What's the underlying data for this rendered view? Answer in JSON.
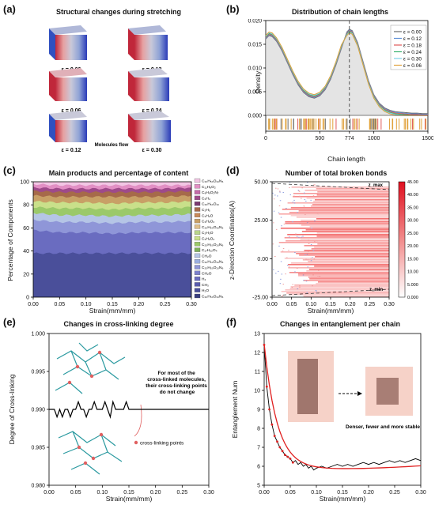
{
  "panels": {
    "a": {
      "label": "(a)",
      "title": "Structural changes during stretching",
      "strains": [
        "ε = 0.00",
        "ε = 0.18",
        "ε = 0.06",
        "ε = 0.24",
        "ε = 0.12",
        "ε = 0.30"
      ],
      "note": "Molecules flow"
    },
    "b": {
      "label": "(b)",
      "title": "Distribution of chain lengths"
    },
    "c": {
      "label": "(c)",
      "title": "Main products and percentage of content"
    },
    "d": {
      "label": "(d)",
      "title": "Number of total broken bonds"
    },
    "e": {
      "label": "(e)",
      "title": "Changes in cross-linking degree",
      "annotation": [
        "For most of the",
        "cross-linked molecules,",
        "their cross-linking points",
        "do not change"
      ],
      "legend_item": "cross-linking points"
    },
    "f": {
      "label": "(f)",
      "title": "Changes in  entanglement per chain",
      "annotation": "Denser, fewer and more stable"
    }
  },
  "chart_data": [
    {
      "id": "b",
      "type": "line",
      "xlabel": "Chain length",
      "ylabel": "Density",
      "xlim": [
        0,
        1500
      ],
      "ylim": [
        0,
        0.02
      ],
      "xticks": [
        0,
        500,
        774,
        1000,
        1500
      ],
      "xtick_labels": [
        "0",
        "500",
        "774",
        "1000",
        "1500"
      ],
      "yticks": [
        0,
        0.005,
        0.01,
        0.015,
        0.02
      ],
      "ytick_labels": [
        "0.000",
        "0.005",
        "0.010",
        "0.015",
        "0.020"
      ],
      "vline": 774,
      "legend_position": "top-right",
      "series": [
        {
          "name": "ε = 0.00",
          "color": "#6b6b6b"
        },
        {
          "name": "ε = 0.12",
          "color": "#5b8ed6"
        },
        {
          "name": "ε = 0.18",
          "color": "#e05a5a"
        },
        {
          "name": "ε = 0.24",
          "color": "#3cb371"
        },
        {
          "name": "ε = 0.30",
          "color": "#7fd0e8"
        },
        {
          "name": "ε = 0.06",
          "color": "#e0a13a"
        }
      ],
      "curve_x": [
        0,
        30,
        60,
        100,
        150,
        200,
        250,
        300,
        350,
        400,
        450,
        500,
        550,
        600,
        650,
        700,
        750,
        774,
        800,
        850,
        900,
        950,
        1000,
        1050,
        1100,
        1150,
        1200,
        1250,
        1300,
        1350,
        1400,
        1450,
        1500
      ],
      "curve_y": [
        0.0165,
        0.0172,
        0.017,
        0.016,
        0.014,
        0.0115,
        0.009,
        0.0068,
        0.0052,
        0.0043,
        0.004,
        0.0045,
        0.0058,
        0.008,
        0.011,
        0.0145,
        0.0172,
        0.0178,
        0.0175,
        0.015,
        0.011,
        0.007,
        0.004,
        0.0022,
        0.0012,
        0.0007,
        0.0004,
        0.0003,
        0.0002,
        0.0001,
        0.0001,
        0.0,
        0.0
      ]
    },
    {
      "id": "c",
      "type": "area",
      "xlabel": "Strain(mm/mm)",
      "ylabel": "Percentage of Components",
      "xlim": [
        0,
        0.3
      ],
      "ylim": [
        0,
        100
      ],
      "xticks": [
        "0.00",
        "0.05",
        "0.10",
        "0.15",
        "0.20",
        "0.25",
        "0.30"
      ],
      "yticks": [
        "0",
        "20",
        "40",
        "60",
        "80",
        "100"
      ],
      "legend_position": "right",
      "legend": [
        "C₂₀H₅₀O₁₀N₆",
        "C₁₁H₈O₂",
        "C₉H₉O₂N₇",
        "C₂H₄",
        "C₂₀H₆₀O₁₀",
        "C₂H₅",
        "C₂H₂O",
        "C₂H₂O₂",
        "C₂₀H₅₀O₁₀N₆",
        "C₂H₃O",
        "C₂H₂O₂",
        "C₂₀H₅₀O₁₀N₆",
        "C₁₇H₂₂O₄",
        "CH₂O",
        "C₂₀H₅₀O₁₀N₆",
        "C₂₀H₅₀O₁₀N₆",
        "CH₂O",
        "H₂",
        "CH₃",
        "H₂O",
        "C₂₀H₅₀O₁₀N₆"
      ],
      "layers": [
        {
          "color": "#4a4f9a",
          "top": [
            38,
            38,
            38,
            38,
            38,
            38,
            38
          ]
        },
        {
          "color": "#6a6cc0",
          "top": [
            58,
            56,
            56,
            55,
            56,
            56,
            56
          ]
        },
        {
          "color": "#8f96d8",
          "top": [
            67,
            65,
            65,
            64,
            65,
            65,
            66
          ]
        },
        {
          "color": "#b5c5e6",
          "top": [
            73,
            71,
            71,
            70,
            71,
            71,
            72
          ]
        },
        {
          "color": "#9bc96a",
          "top": [
            78,
            77,
            77,
            76,
            77,
            77,
            78
          ]
        },
        {
          "color": "#c9e08a",
          "top": [
            83,
            82,
            82,
            81,
            82,
            82,
            83
          ]
        },
        {
          "color": "#c8a066",
          "top": [
            88,
            87,
            87,
            87,
            87,
            87,
            88
          ]
        },
        {
          "color": "#a66a4a",
          "top": [
            92,
            91,
            91,
            91,
            91,
            91,
            92
          ]
        },
        {
          "color": "#9e4a8a",
          "top": [
            95,
            94,
            94,
            94,
            94,
            94,
            95
          ]
        },
        {
          "color": "#e28fc4",
          "top": [
            98,
            97,
            97,
            97,
            97,
            97,
            97
          ]
        }
      ]
    },
    {
      "id": "d",
      "type": "heatmap",
      "xlabel": "Strain(mm/mm)",
      "ylabel": "z-Direction Coordinates(A)",
      "xlim": [
        0,
        0.3
      ],
      "ylim": [
        -25,
        50
      ],
      "xticks": [
        "0.00",
        "0.05",
        "0.10",
        "0.15",
        "0.20",
        "0.25",
        "0.30"
      ],
      "yticks": [
        "-25.00",
        "0.00",
        "25.00",
        "50.00"
      ],
      "colorbar": [
        "0.000",
        "5.000",
        "10.00",
        "15.00",
        "20.00",
        "25.00",
        "30.00",
        "35.00",
        "40.00",
        "45.00"
      ],
      "zmax_label": "z_max",
      "zmin_label": "z_min"
    },
    {
      "id": "e",
      "type": "line",
      "xlabel": "Strain(mm/mm)",
      "ylabel": "Degree of Cross-linking",
      "xlim": [
        0,
        0.3
      ],
      "ylim": [
        0.98,
        1.0
      ],
      "xticks": [
        "0.00",
        "0.05",
        "0.10",
        "0.15",
        "0.20",
        "0.25",
        "0.30"
      ],
      "yticks": [
        "0.980",
        "0.985",
        "0.990",
        "0.995",
        "1.000"
      ],
      "x": [
        0,
        0.005,
        0.01,
        0.015,
        0.02,
        0.025,
        0.03,
        0.035,
        0.04,
        0.045,
        0.05,
        0.055,
        0.06,
        0.065,
        0.07,
        0.075,
        0.08,
        0.085,
        0.09,
        0.095,
        0.1,
        0.105,
        0.11,
        0.115,
        0.12,
        0.125,
        0.13,
        0.135,
        0.14,
        0.145,
        0.15,
        0.155,
        0.16,
        0.165,
        0.17,
        0.175,
        0.18,
        0.185,
        0.19,
        0.195,
        0.2,
        0.205,
        0.21,
        0.215,
        0.22,
        0.225,
        0.23,
        0.235,
        0.24,
        0.245,
        0.25,
        0.255,
        0.26,
        0.265,
        0.27,
        0.275,
        0.28,
        0.285,
        0.29,
        0.295,
        0.3
      ],
      "y": [
        0.99,
        0.99,
        0.99,
        0.989,
        0.99,
        0.989,
        0.99,
        0.99,
        0.989,
        0.99,
        0.99,
        0.991,
        0.99,
        0.99,
        0.989,
        0.99,
        0.99,
        0.991,
        0.99,
        0.99,
        0.99,
        0.991,
        0.99,
        0.989,
        0.991,
        0.99,
        0.99,
        0.99,
        0.99,
        0.991,
        0.99,
        0.99,
        0.99,
        0.99,
        0.99,
        0.99,
        0.99,
        0.99,
        0.99,
        0.99,
        0.99,
        0.99,
        0.99,
        0.99,
        0.99,
        0.99,
        0.99,
        0.99,
        0.99,
        0.99,
        0.99,
        0.99,
        0.99,
        0.99,
        0.99,
        0.99,
        0.99,
        0.99,
        0.99,
        0.99,
        0.99
      ]
    },
    {
      "id": "f",
      "type": "line",
      "xlabel": "Strain(mm/mm)",
      "ylabel": "Entanglement Num",
      "xlim": [
        0,
        0.3
      ],
      "ylim": [
        5,
        13
      ],
      "xticks": [
        "0.00",
        "0.05",
        "0.10",
        "0.15",
        "0.20",
        "0.25",
        "0.30"
      ],
      "yticks": [
        "5",
        "6",
        "7",
        "8",
        "9",
        "10",
        "11",
        "12",
        "13"
      ],
      "x": [
        0,
        0.005,
        0.01,
        0.015,
        0.02,
        0.025,
        0.03,
        0.035,
        0.04,
        0.045,
        0.05,
        0.055,
        0.06,
        0.065,
        0.07,
        0.075,
        0.08,
        0.085,
        0.09,
        0.095,
        0.1,
        0.11,
        0.12,
        0.13,
        0.14,
        0.15,
        0.16,
        0.17,
        0.18,
        0.19,
        0.2,
        0.21,
        0.22,
        0.23,
        0.24,
        0.25,
        0.26,
        0.27,
        0.28,
        0.29,
        0.3
      ],
      "y": [
        12.4,
        10.2,
        9.0,
        8.2,
        7.6,
        7.3,
        7.0,
        6.8,
        6.6,
        6.5,
        6.4,
        6.2,
        6.3,
        6.1,
        6.2,
        6.0,
        6.1,
        5.9,
        6.0,
        5.8,
        5.9,
        6.0,
        5.9,
        6.0,
        6.1,
        6.0,
        6.1,
        6.0,
        6.1,
        6.2,
        6.1,
        6.2,
        6.1,
        6.2,
        6.3,
        6.2,
        6.3,
        6.2,
        6.3,
        6.4,
        6.3
      ]
    }
  ]
}
